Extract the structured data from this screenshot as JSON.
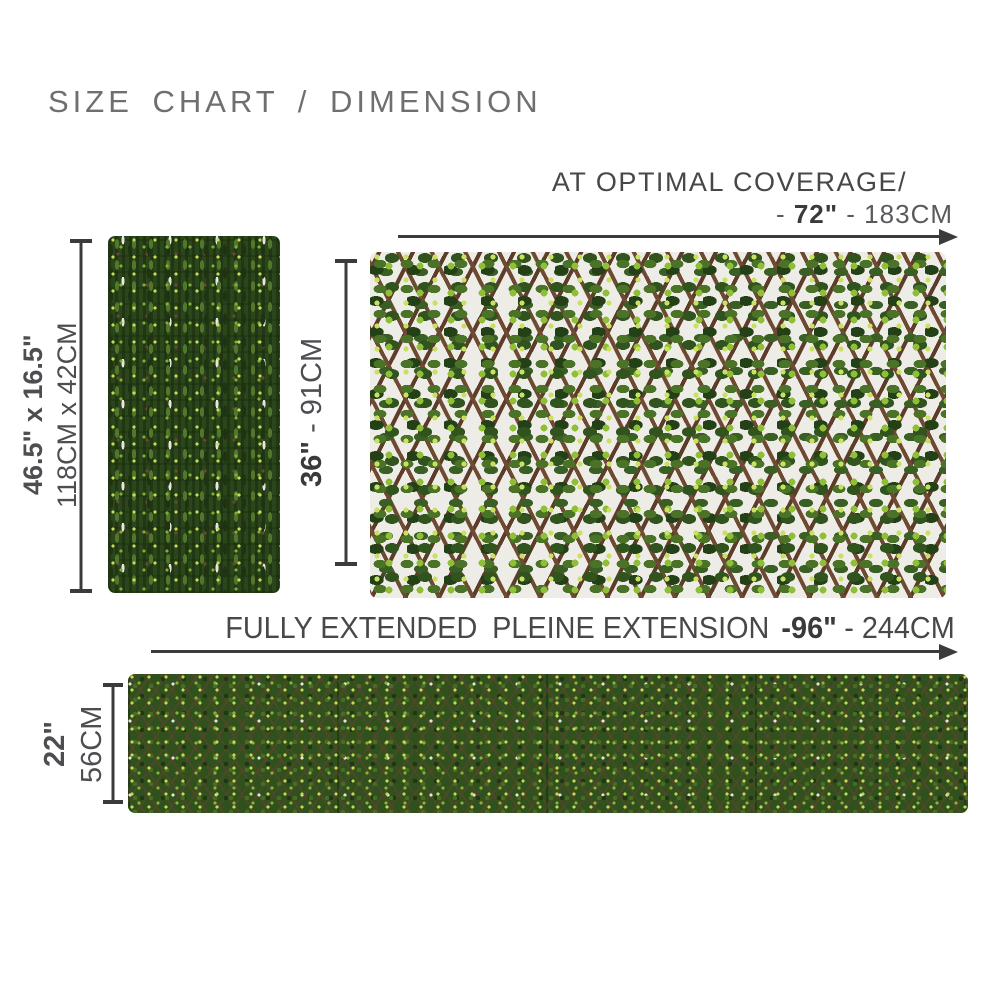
{
  "title": "SIZE CHART / DIMENSION",
  "folded": {
    "size_inches": "46.5\" x 16.5\"",
    "size_cm": "118CM x 42CM"
  },
  "optimal": {
    "heading": "AT OPTIMAL COVERAGE/",
    "width_dash": "- ",
    "width_inches": "72\"",
    "width_cm": " - 183CM",
    "height_inches": "36\"",
    "height_cm": " - 91CM"
  },
  "extended": {
    "heading_part1": "FULLY EXTENDED",
    "heading_part2": "PLEINE EXTENSION",
    "width_inches": "-96\"",
    "width_cm": "- 244CM",
    "height_inches": "22\"",
    "height_cm": "56CM"
  },
  "colors": {
    "background": "#ffffff",
    "title_gray": "#6f6f72",
    "text_dark": "#3a3a3c",
    "text_regular": "#4e4e52",
    "dimension_ink": "#3b3b3d",
    "leaf_dark": "#244017",
    "leaf_mid": "#3f6428",
    "leaf_highlight": "#b7d94e",
    "trellis_brown": "#6e4a33"
  }
}
